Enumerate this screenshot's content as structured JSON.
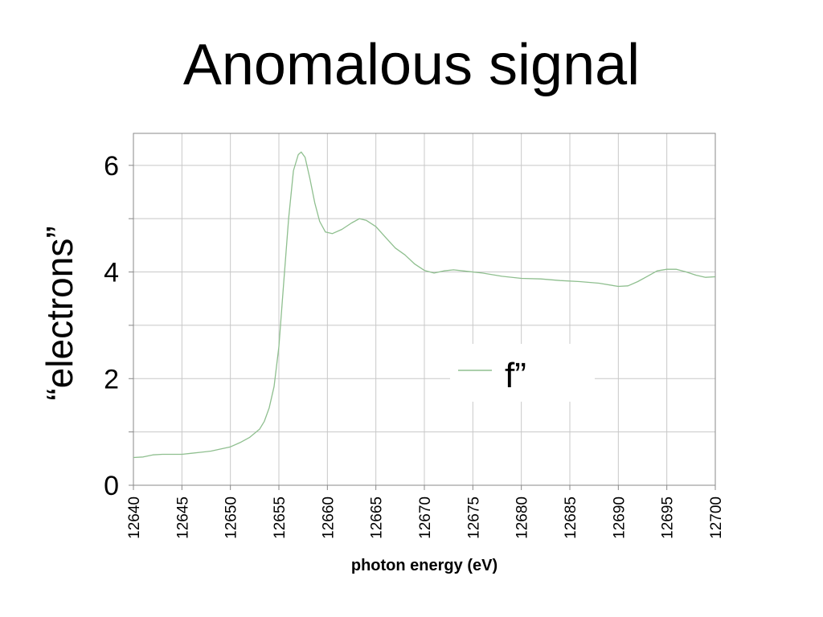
{
  "slide": {
    "title": "Anomalous signal"
  },
  "chart_data": {
    "type": "line",
    "xlabel": "photon energy (eV)",
    "ylabel": "“electrons”",
    "xlim": [
      12640,
      12700
    ],
    "ylim": [
      0,
      6.6
    ],
    "x_ticks": [
      12640,
      12645,
      12650,
      12655,
      12660,
      12665,
      12670,
      12675,
      12680,
      12685,
      12690,
      12695,
      12700
    ],
    "y_ticks": [
      0,
      2,
      4,
      6
    ],
    "y_minor_gridlines": [
      1,
      3,
      5
    ],
    "grid": true,
    "legend": {
      "placement": "center-right",
      "entries": [
        "f”"
      ]
    },
    "series": [
      {
        "name": "f”",
        "color": "#8fbf8f",
        "points": [
          [
            12640,
            0.52
          ],
          [
            12641,
            0.53
          ],
          [
            12642,
            0.57
          ],
          [
            12643,
            0.58
          ],
          [
            12645,
            0.58
          ],
          [
            12646,
            0.6
          ],
          [
            12647,
            0.62
          ],
          [
            12648,
            0.64
          ],
          [
            12649,
            0.68
          ],
          [
            12650,
            0.72
          ],
          [
            12651,
            0.8
          ],
          [
            12652,
            0.9
          ],
          [
            12653,
            1.05
          ],
          [
            12653.5,
            1.2
          ],
          [
            12654,
            1.45
          ],
          [
            12654.5,
            1.85
          ],
          [
            12655,
            2.6
          ],
          [
            12655.5,
            3.8
          ],
          [
            12656,
            5.0
          ],
          [
            12656.5,
            5.9
          ],
          [
            12657,
            6.2
          ],
          [
            12657.3,
            6.25
          ],
          [
            12657.7,
            6.15
          ],
          [
            12658.2,
            5.75
          ],
          [
            12658.7,
            5.3
          ],
          [
            12659.2,
            4.95
          ],
          [
            12659.8,
            4.75
          ],
          [
            12660.5,
            4.72
          ],
          [
            12661.5,
            4.8
          ],
          [
            12662.5,
            4.92
          ],
          [
            12663.3,
            5.0
          ],
          [
            12664,
            4.97
          ],
          [
            12665,
            4.85
          ],
          [
            12666,
            4.65
          ],
          [
            12667,
            4.45
          ],
          [
            12668,
            4.32
          ],
          [
            12669,
            4.15
          ],
          [
            12670,
            4.03
          ],
          [
            12671,
            3.98
          ],
          [
            12672,
            4.02
          ],
          [
            12673,
            4.04
          ],
          [
            12674,
            4.02
          ],
          [
            12676,
            3.98
          ],
          [
            12678,
            3.92
          ],
          [
            12680,
            3.88
          ],
          [
            12682,
            3.87
          ],
          [
            12684,
            3.84
          ],
          [
            12686,
            3.82
          ],
          [
            12688,
            3.79
          ],
          [
            12690,
            3.73
          ],
          [
            12691,
            3.74
          ],
          [
            12692,
            3.82
          ],
          [
            12693,
            3.92
          ],
          [
            12694,
            4.02
          ],
          [
            12695,
            4.05
          ],
          [
            12696,
            4.05
          ],
          [
            12697,
            4.0
          ],
          [
            12698,
            3.94
          ],
          [
            12699,
            3.9
          ],
          [
            12700,
            3.91
          ]
        ]
      }
    ]
  }
}
